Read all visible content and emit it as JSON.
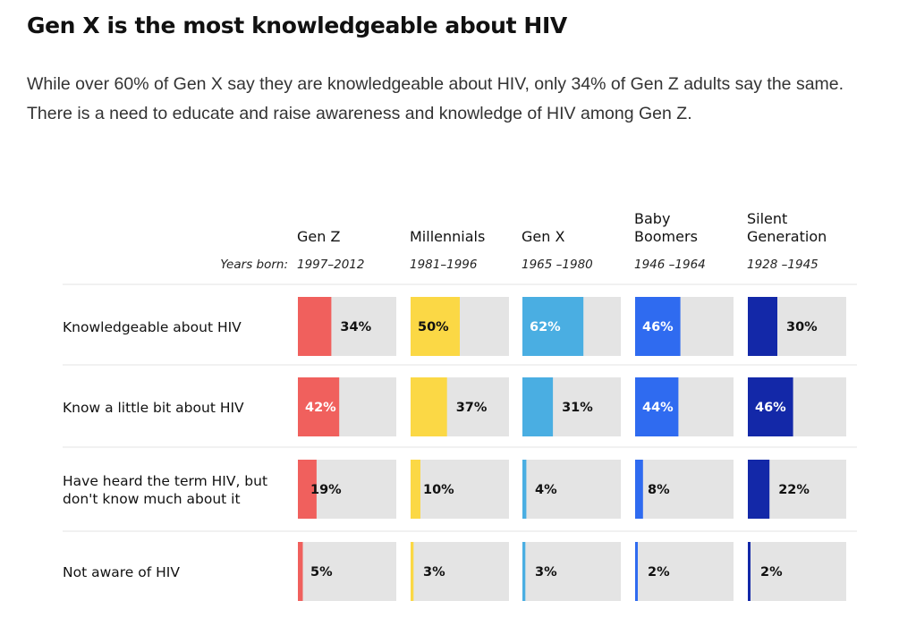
{
  "header": {
    "title": "Gen X is the most knowledgeable about HIV",
    "subtitle_line1": "While over 60% of Gen X say they are knowledgeable about HIV, only 34% of Gen Z adults say the same.",
    "subtitle_line2": "There is a need to educate and raise awareness and knowledge of HIV among Gen Z."
  },
  "chart_data": {
    "type": "bar",
    "years_label": "Years born:",
    "scale_max": 100,
    "generations": [
      {
        "name_lines": [
          "Gen Z"
        ],
        "years": "1997–2012",
        "color": "#f0605d",
        "label_color_inside": "#ffffff"
      },
      {
        "name_lines": [
          "Millennials"
        ],
        "years": "1981–1996",
        "color": "#fbd845",
        "label_color_inside": "#111111"
      },
      {
        "name_lines": [
          "Gen X"
        ],
        "years": "1965 –1980",
        "color": "#4aaee2",
        "label_color_inside": "#ffffff"
      },
      {
        "name_lines": [
          "Baby",
          "Boomers"
        ],
        "years": "1946 –1964",
        "color": "#2f6bf0",
        "label_color_inside": "#ffffff"
      },
      {
        "name_lines": [
          "Silent",
          "Generation"
        ],
        "years": "1928 –1945",
        "color": "#1328a8",
        "label_color_inside": "#ffffff"
      }
    ],
    "categories": [
      {
        "label_lines": [
          "Knowledgeable about HIV"
        ],
        "values": [
          34,
          50,
          62,
          46,
          30
        ]
      },
      {
        "label_lines": [
          "Know a little bit about HIV"
        ],
        "values": [
          42,
          37,
          31,
          44,
          46
        ]
      },
      {
        "label_lines": [
          "Have heard the term HIV, but",
          "don't know much about it"
        ],
        "values": [
          19,
          10,
          4,
          8,
          22
        ]
      },
      {
        "label_lines": [
          "Not aware of HIV"
        ],
        "values": [
          5,
          3,
          3,
          2,
          2
        ]
      }
    ]
  }
}
